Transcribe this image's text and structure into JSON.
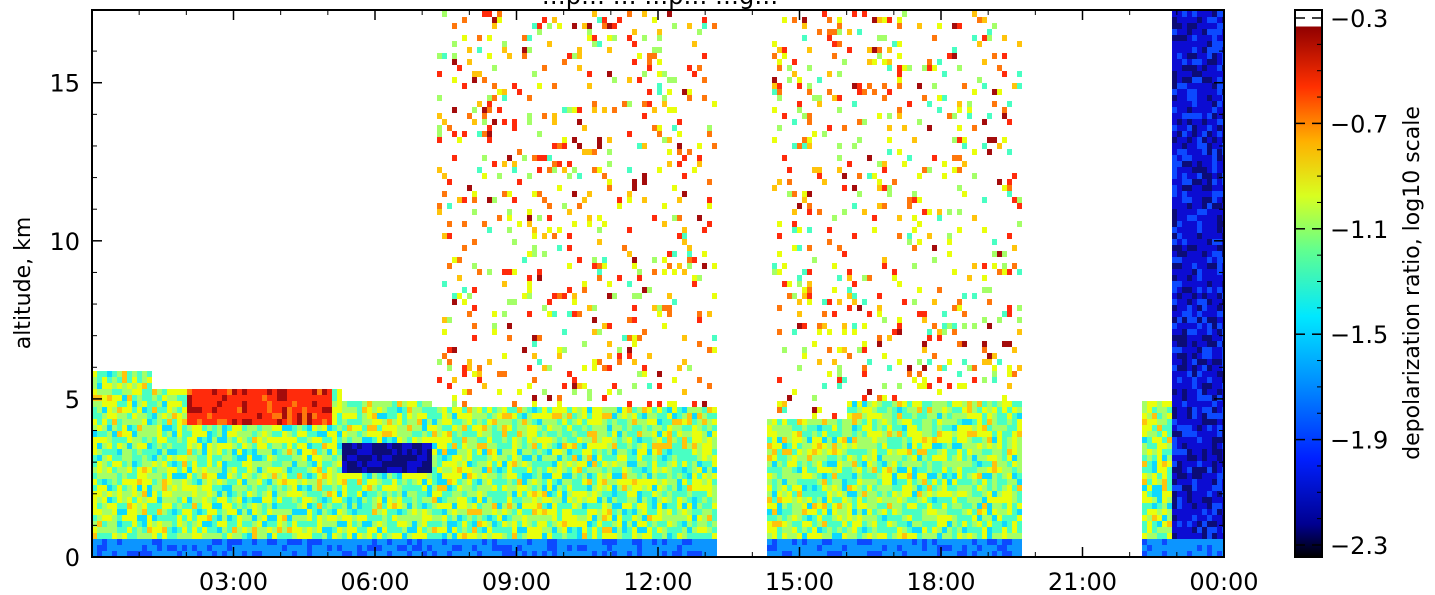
{
  "chart_data": {
    "type": "heatmap",
    "title": "…p… … …p… …g…",
    "xlabel": "",
    "ylabel": "altitude, km",
    "x_tick_labels": [
      "03:00",
      "06:00",
      "09:00",
      "12:00",
      "15:00",
      "18:00",
      "21:00",
      "00:00"
    ],
    "x_tick_hours": [
      3,
      6,
      9,
      12,
      15,
      18,
      21,
      24
    ],
    "xlim_hours": [
      0,
      24
    ],
    "y_tick_labels": [
      "0",
      "5",
      "10",
      "15"
    ],
    "y_tick_values": [
      0,
      5,
      10,
      15
    ],
    "ylim": [
      0,
      17.3
    ],
    "colorbar": {
      "label": "depolarization ratio, log10 scale",
      "tick_labels": [
        "−0.3",
        "−0.7",
        "−1.1",
        "−1.5",
        "−1.9",
        "−2.3"
      ],
      "tick_values": [
        -0.3,
        -0.7,
        -1.1,
        -1.5,
        -1.9,
        -2.3
      ],
      "range": [
        -2.3,
        -0.3
      ],
      "colormap": "jet"
    },
    "no_data_intervals_hours": [
      [
        13.2,
        14.3
      ],
      [
        19.7,
        20.2
      ],
      [
        20.2,
        22.2
      ]
    ],
    "grid": false
  },
  "colors": {
    "jet_stops": [
      "#000080",
      "#0000ff",
      "#0080ff",
      "#00ffff",
      "#80ff80",
      "#ffff00",
      "#ff8000",
      "#ff0000",
      "#800000"
    ]
  }
}
